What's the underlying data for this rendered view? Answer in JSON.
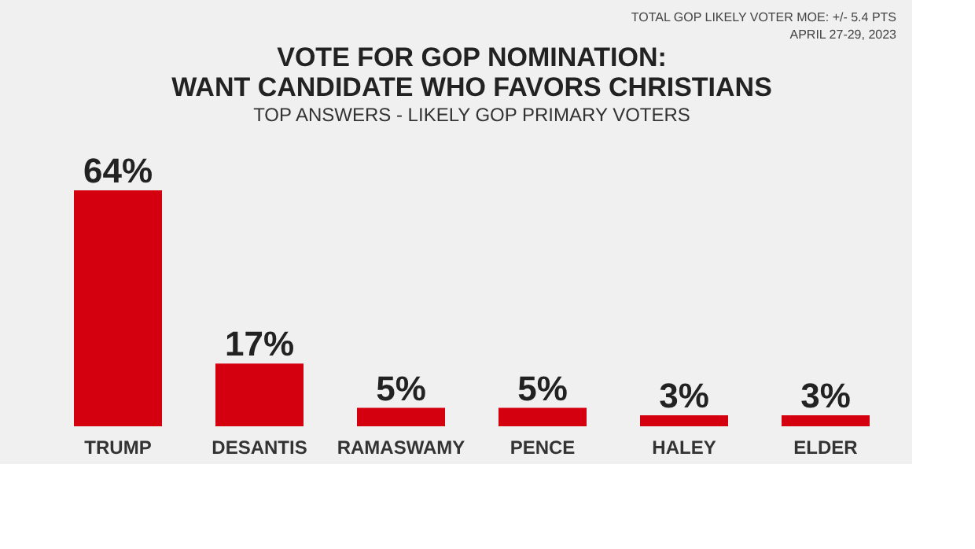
{
  "chart_data": {
    "type": "bar",
    "title": [
      "VOTE FOR GOP NOMINATION:",
      "WANT CANDIDATE WHO FAVORS CHRISTIANS"
    ],
    "subtitle": "TOP ANSWERS - LIKELY GOP PRIMARY VOTERS",
    "annotations": [
      "TOTAL GOP LIKELY VOTER MOE: +/- 5.4 PTS",
      "APRIL 27-29, 2023"
    ],
    "categories": [
      "TRUMP",
      "DESANTIS",
      "RAMASWAMY",
      "PENCE",
      "HALEY",
      "ELDER"
    ],
    "values": [
      64,
      17,
      5,
      5,
      3,
      3
    ],
    "value_labels": [
      "64%",
      "17%",
      "5%",
      "5%",
      "3%",
      "3%"
    ],
    "color": "#d40010",
    "grid": false
  }
}
